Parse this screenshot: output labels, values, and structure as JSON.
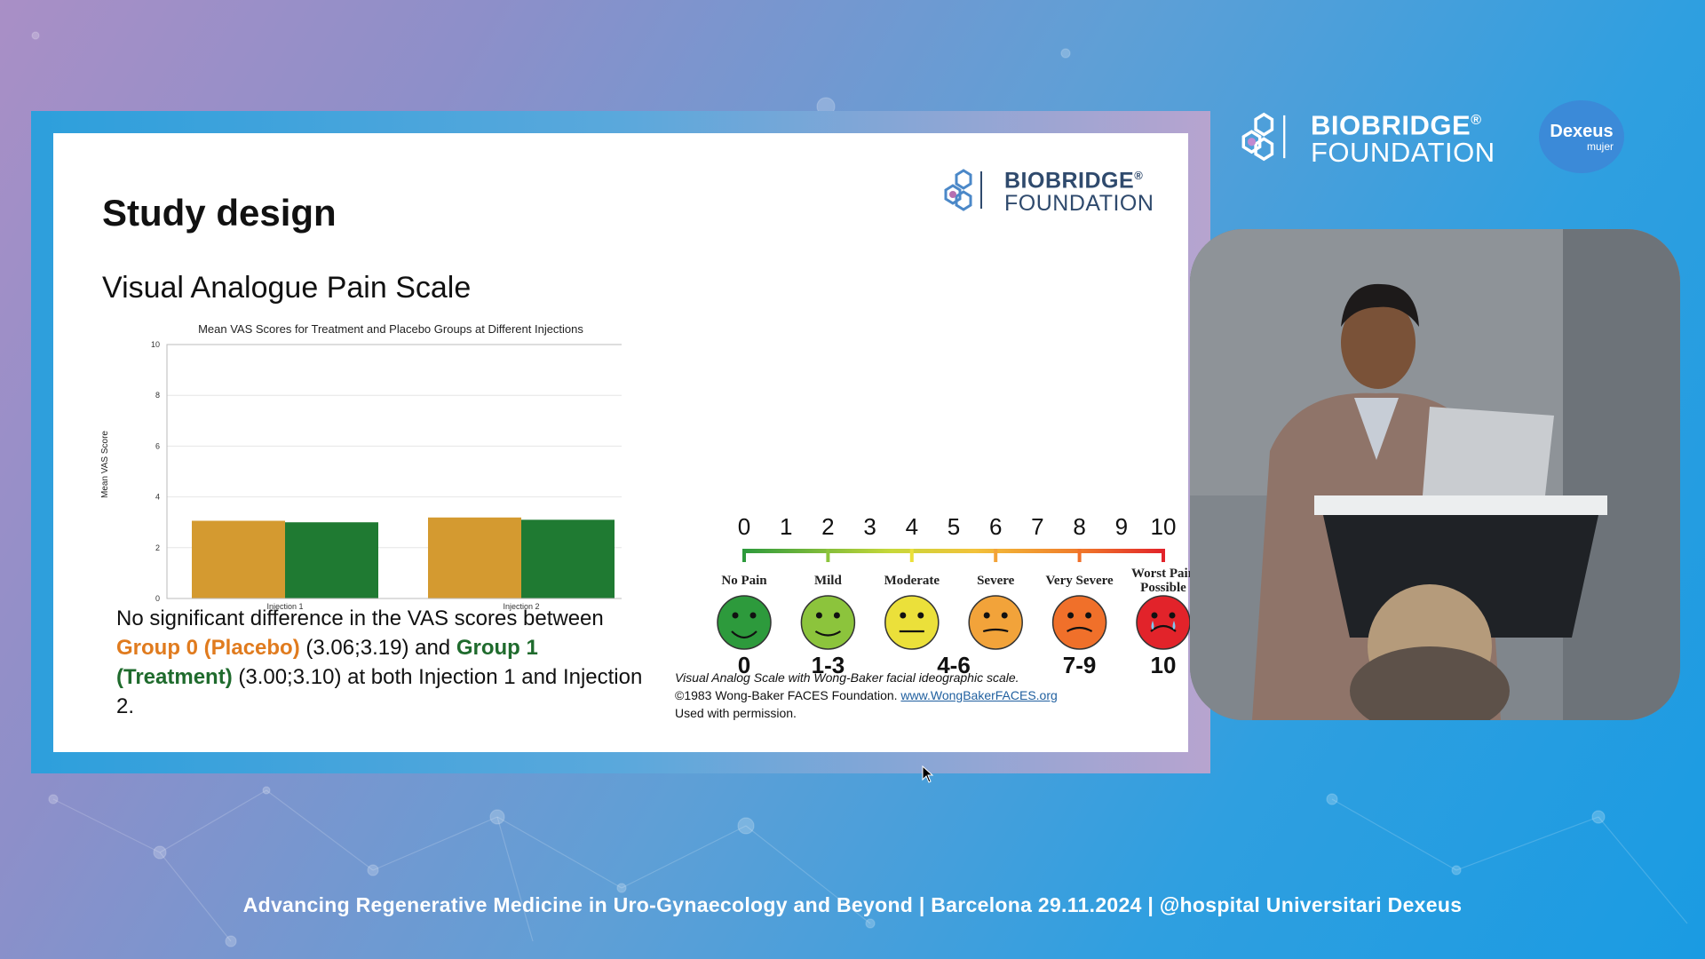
{
  "slide": {
    "title": "Study design",
    "subtitle": "Visual Analogue Pain Scale",
    "logo": {
      "line1": "BIOBRIDGE",
      "reg": "®",
      "line2": "FOUNDATION"
    },
    "description": {
      "part1": "No significant difference in the VAS scores between ",
      "group0": "Group 0 (Placebo)",
      "part2": " (3.06;3.19) and ",
      "group1": "Group 1 (Treatment)",
      "part3": " (3.00;3.10) at both Injection 1 and Injection 2."
    },
    "credit": {
      "caption": "Visual Analog Scale with Wong-Baker facial ideographic scale.",
      "copyright": "©1983 Wong-Baker FACES Foundation. ",
      "link": "www.WongBakerFACES.org",
      "permission": "Used with permission."
    }
  },
  "chart_data": {
    "type": "bar",
    "title": "Mean VAS Scores for Treatment and Placebo Groups at Different Injections",
    "ylabel": "Mean VAS Score",
    "xlabel": "",
    "categories": [
      "Injection 1",
      "Injection 2"
    ],
    "series": [
      {
        "values": [
          3.06,
          3.19
        ],
        "color": "#d49a30"
      },
      {
        "values": [
          3.0,
          3.1
        ],
        "color": "#1f7a32"
      }
    ],
    "ylim": [
      0,
      10
    ],
    "yticks": [
      0,
      2,
      4,
      6,
      8,
      10
    ],
    "grid": true
  },
  "pain_scale": {
    "numbers": [
      "0",
      "1",
      "2",
      "3",
      "4",
      "5",
      "6",
      "7",
      "8",
      "9",
      "10"
    ],
    "faces": [
      {
        "label": "No Pain",
        "range": "0",
        "color": "#2d9a3c"
      },
      {
        "label": "Mild",
        "range": "1-3",
        "color": "#8cc43c"
      },
      {
        "label": "Moderate",
        "range": "4-6",
        "color": "#ebe03a"
      },
      {
        "label": "Severe",
        "range": "",
        "color": "#f2a33a"
      },
      {
        "label": "Very Severe",
        "range": "7-9",
        "color": "#f0702a"
      },
      {
        "label": "Worst Pain Possible",
        "range": "10",
        "color": "#e2232a"
      }
    ]
  },
  "header": {
    "logo": {
      "line1": "BIOBRIDGE",
      "reg": "®",
      "line2": "FOUNDATION"
    },
    "dexeus": {
      "name": "Dexeus",
      "sub": "mujer"
    }
  },
  "footer": {
    "text": "Advancing Regenerative Medicine in Uro-Gynaecology and Beyond | Barcelona 29.11.2024 | @hospital Universitari Dexeus"
  }
}
